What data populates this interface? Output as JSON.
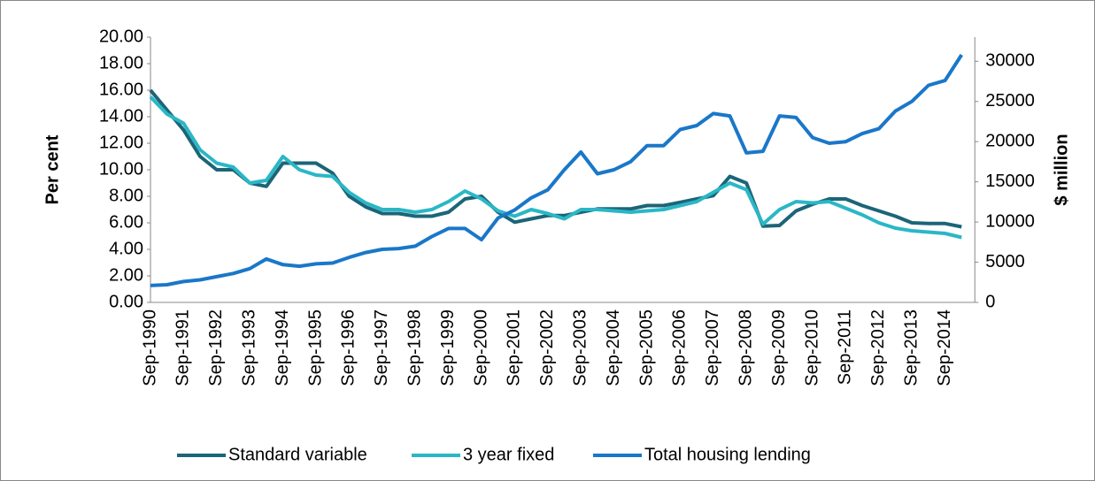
{
  "chart_data": {
    "type": "line",
    "categories": [
      "Sep-1990",
      null,
      "Sep-1991",
      null,
      "Sep-1992",
      null,
      "Sep-1993",
      null,
      "Sep-1994",
      null,
      "Sep-1995",
      null,
      "Sep-1996",
      null,
      "Sep-1997",
      null,
      "Sep-1998",
      null,
      "Sep-1999",
      null,
      "Sep-2000",
      null,
      "Sep-2001",
      null,
      "Sep-2002",
      null,
      "Sep-2003",
      null,
      "Sep-2004",
      null,
      "Sep-2005",
      null,
      "Sep-2006",
      null,
      "Sep-2007",
      null,
      "Sep-2008",
      null,
      "Sep-2009",
      null,
      "Sep-2010",
      null,
      "Sep-2011",
      null,
      "Sep-2012",
      null,
      "Sep-2013",
      null,
      "Sep-2014",
      null
    ],
    "series": [
      {
        "name": "Standard variable",
        "color": "#1b6578",
        "values": [
          16.0,
          14.5,
          13.0,
          11.0,
          10.0,
          10.0,
          9.0,
          8.75,
          10.5,
          10.5,
          10.5,
          9.75,
          8.0,
          7.2,
          6.7,
          6.7,
          6.5,
          6.5,
          6.8,
          7.8,
          8.0,
          6.8,
          6.05,
          6.3,
          6.55,
          6.55,
          6.8,
          7.05,
          7.05,
          7.05,
          7.3,
          7.3,
          7.55,
          7.8,
          8.05,
          9.5,
          9.0,
          5.75,
          5.8,
          6.9,
          7.4,
          7.8,
          7.8,
          7.3,
          6.9,
          6.5,
          6.0,
          5.95,
          5.95,
          5.7
        ]
      },
      {
        "name": "3 year fixed",
        "color": "#2ab7c6",
        "values": [
          15.5,
          14.2,
          13.5,
          11.5,
          10.5,
          10.2,
          9.0,
          9.2,
          11.0,
          10.0,
          9.6,
          9.5,
          8.3,
          7.5,
          7.0,
          7.0,
          6.8,
          7.0,
          7.6,
          8.4,
          7.8,
          6.9,
          6.5,
          7.0,
          6.7,
          6.3,
          7.0,
          7.0,
          6.9,
          6.8,
          6.9,
          7.0,
          7.3,
          7.6,
          8.3,
          9.0,
          8.5,
          5.9,
          7.0,
          7.6,
          7.5,
          7.6,
          7.1,
          6.6,
          6.0,
          5.6,
          5.4,
          5.3,
          5.2,
          4.9
        ]
      },
      {
        "name": "Total housing lending",
        "color": "#1a77c9",
        "axis": "y2",
        "values": [
          2100,
          2200,
          2600,
          2800,
          3200,
          3600,
          4200,
          5400,
          4700,
          4500,
          4800,
          4900,
          5600,
          6200,
          6600,
          6700,
          7000,
          8200,
          9200,
          9200,
          7800,
          10500,
          11500,
          13000,
          14000,
          16500,
          18700,
          16000,
          16500,
          17500,
          19500,
          19500,
          21500,
          22000,
          23500,
          23200,
          18600,
          18800,
          23200,
          23000,
          20500,
          19800,
          20000,
          21000,
          21600,
          23800,
          25000,
          27000,
          27600,
          30800
        ]
      }
    ],
    "ylabel": "Per cent",
    "y2label": "$ million",
    "ylim": [
      0,
      20
    ],
    "yticks": [
      {
        "value": 0,
        "label": "0.00"
      },
      {
        "value": 2,
        "label": "2.00"
      },
      {
        "value": 4,
        "label": "4.00"
      },
      {
        "value": 6,
        "label": "6.00"
      },
      {
        "value": 8,
        "label": "8.00"
      },
      {
        "value": 10,
        "label": "10.00"
      },
      {
        "value": 12,
        "label": "12.00"
      },
      {
        "value": 14,
        "label": "14.00"
      },
      {
        "value": 16,
        "label": "16.00"
      },
      {
        "value": 18,
        "label": "18.00"
      },
      {
        "value": 20,
        "label": "20.00"
      }
    ],
    "y2lim": [
      0,
      33000
    ],
    "y2ticks": [
      0,
      5000,
      10000,
      15000,
      20000,
      25000,
      30000
    ],
    "legend": "bottom",
    "grid": false
  }
}
